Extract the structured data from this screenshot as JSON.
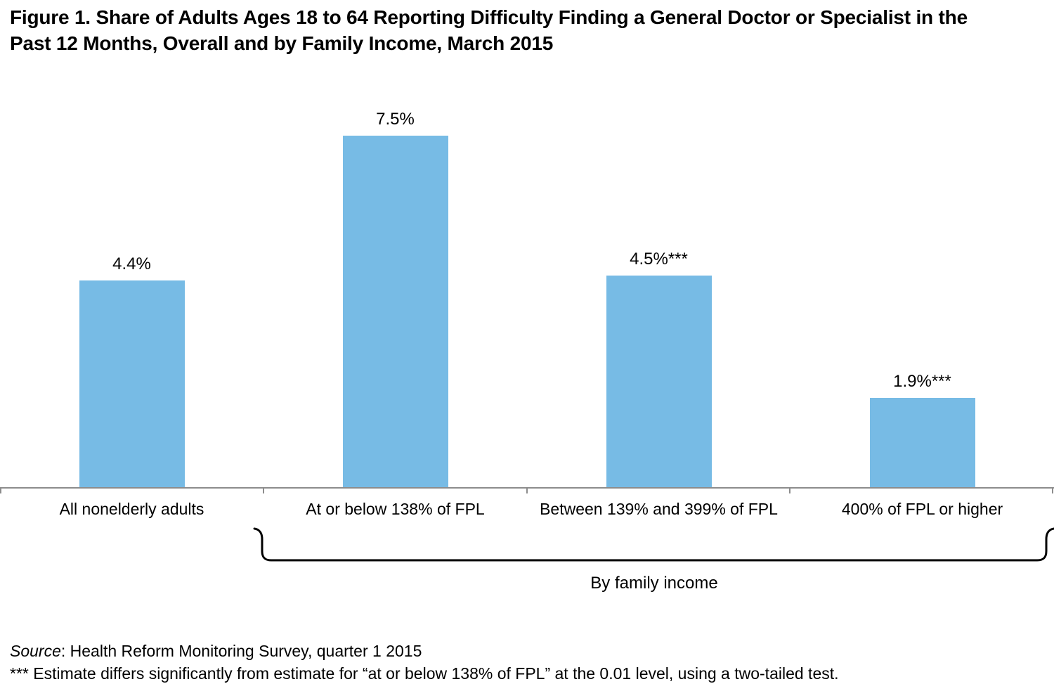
{
  "figure": {
    "title": "Figure 1. Share of Adults Ages 18 to 64 Reporting Difficulty Finding a General Doctor or Specialist in the Past 12 Months, Overall and by Family Income, March 2015"
  },
  "chart_data": {
    "type": "bar",
    "title": "Share of Adults Ages 18 to 64 Reporting Difficulty Finding a General Doctor or Specialist in the Past 12 Months, Overall and by Family Income, March 2015",
    "categories": [
      "All nonelderly adults",
      "At or below 138% of FPL",
      "Between 139% and 399% of FPL",
      "400% of FPL or higher"
    ],
    "values": [
      4.4,
      7.5,
      4.5,
      1.9
    ],
    "data_labels": [
      "4.4%",
      "7.5%",
      "4.5%***",
      "1.9%***"
    ],
    "ylim": [
      0,
      8
    ],
    "grid": false,
    "legend": "none",
    "bar_color": "#77BBE5",
    "axis_color": "#8C8C8C",
    "group_bracket": {
      "label": "By family income",
      "covers": [
        "At or below 138% of FPL",
        "Between 139% and 399% of FPL",
        "400% of FPL or higher"
      ]
    }
  },
  "footer": {
    "source_prefix": "Source",
    "source_rest": ": Health Reform Monitoring Survey, quarter 1 2015",
    "significance_note": "*** Estimate differs significantly from estimate for “at or below 138% of FPL” at the 0.01 level, using a two-tailed test."
  }
}
